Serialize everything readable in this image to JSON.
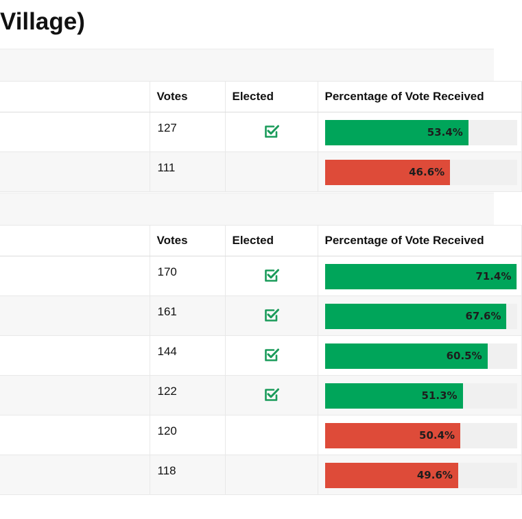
{
  "page": {
    "title": "Village)"
  },
  "colors": {
    "elected": "#00a55a",
    "not_elected": "#de4b39",
    "check": "#1a9b5a"
  },
  "table1": {
    "headers": {
      "votes": "Votes",
      "elected": "Elected",
      "pct": "Percentage of Vote Received"
    },
    "rows": [
      {
        "votes": "127",
        "elected": true,
        "pct": 53.4,
        "pct_label": "53.4%"
      },
      {
        "votes": "111",
        "elected": false,
        "pct": 46.6,
        "pct_label": "46.6%"
      }
    ]
  },
  "table2": {
    "headers": {
      "votes": "Votes",
      "elected": "Elected",
      "pct": "Percentage of Vote Received"
    },
    "rows": [
      {
        "votes": "170",
        "elected": true,
        "pct": 71.4,
        "pct_label": "71.4%"
      },
      {
        "votes": "161",
        "elected": true,
        "pct": 67.6,
        "pct_label": "67.6%"
      },
      {
        "votes": "144",
        "elected": true,
        "pct": 60.5,
        "pct_label": "60.5%"
      },
      {
        "votes": "122",
        "elected": true,
        "pct": 51.3,
        "pct_label": "51.3%"
      },
      {
        "votes": "120",
        "elected": false,
        "pct": 50.4,
        "pct_label": "50.4%"
      },
      {
        "votes": "118",
        "elected": false,
        "pct": 49.6,
        "pct_label": "49.6%"
      }
    ]
  }
}
